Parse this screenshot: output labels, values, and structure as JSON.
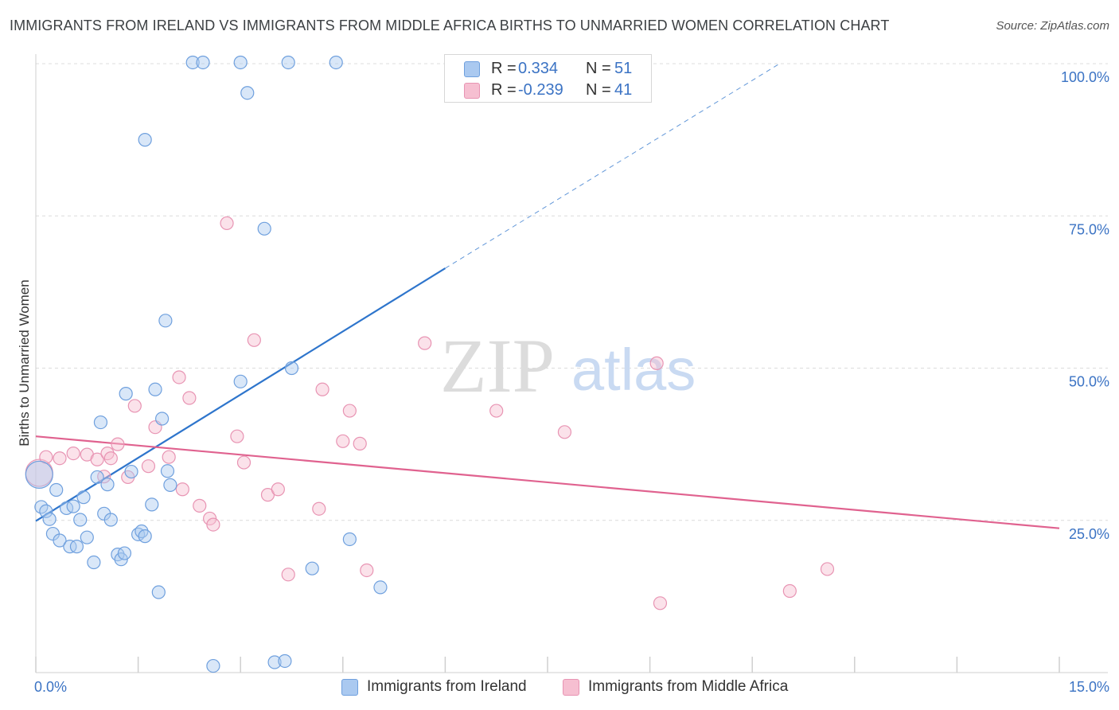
{
  "title": "IMMIGRANTS FROM IRELAND VS IMMIGRANTS FROM MIDDLE AFRICA BIRTHS TO UNMARRIED WOMEN CORRELATION CHART",
  "source": "Source: ZipAtlas.com",
  "watermark": {
    "zip": "ZIP",
    "atlas": "atlas"
  },
  "legend": {
    "rows": [
      {
        "r_label": "R =",
        "r_value": "0.334",
        "n_label": "N =",
        "n_value": "51"
      },
      {
        "r_label": "R =",
        "r_value": "-0.239",
        "n_label": "N =",
        "n_value": "41"
      }
    ]
  },
  "colors": {
    "ireland_fill": "#aac9f0",
    "ireland_stroke": "#6fa0de",
    "ireland_line": "#2e75cc",
    "africa_fill": "#f6bfd1",
    "africa_stroke": "#e894b3",
    "africa_line": "#e0628f",
    "tick_text": "#3b73c4",
    "grid": "#dcdcdc"
  },
  "chart_data": {
    "type": "scatter",
    "title": "IMMIGRANTS FROM IRELAND VS IMMIGRANTS FROM MIDDLE AFRICA BIRTHS TO UNMARRIED WOMEN CORRELATION CHART",
    "xlabel": "",
    "ylabel": "Births to Unmarried Women",
    "xlim": [
      0,
      15
    ],
    "ylim": [
      0,
      100
    ],
    "x_tick_labels": [
      "0.0%",
      "15.0%"
    ],
    "y_ticks": [
      25,
      50,
      75,
      100
    ],
    "y_tick_labels": [
      "25.0%",
      "50.0%",
      "75.0%",
      "100.0%"
    ],
    "legend_position": "bottom",
    "series": [
      {
        "name": "Immigrants from Ireland",
        "R": 0.334,
        "N": 51,
        "trend": {
          "x": [
            0,
            6
          ],
          "y": [
            24.9,
            66.4
          ],
          "dashed_to": [
            10.9,
            100.0
          ]
        },
        "points": [
          {
            "x": 0.05,
            "y": 32.5,
            "big": true
          },
          {
            "x": 0.08,
            "y": 27.2
          },
          {
            "x": 0.15,
            "y": 26.5
          },
          {
            "x": 0.2,
            "y": 25.2
          },
          {
            "x": 0.25,
            "y": 22.8
          },
          {
            "x": 0.3,
            "y": 30.0
          },
          {
            "x": 0.35,
            "y": 21.7
          },
          {
            "x": 0.45,
            "y": 27.0
          },
          {
            "x": 0.5,
            "y": 20.7
          },
          {
            "x": 0.55,
            "y": 27.3
          },
          {
            "x": 0.6,
            "y": 20.7
          },
          {
            "x": 0.65,
            "y": 25.1
          },
          {
            "x": 0.7,
            "y": 28.8
          },
          {
            "x": 0.75,
            "y": 22.2
          },
          {
            "x": 0.85,
            "y": 18.1
          },
          {
            "x": 0.9,
            "y": 32.1
          },
          {
            "x": 0.95,
            "y": 41.1
          },
          {
            "x": 1.0,
            "y": 26.1
          },
          {
            "x": 1.05,
            "y": 30.9
          },
          {
            "x": 1.1,
            "y": 25.1
          },
          {
            "x": 1.2,
            "y": 19.4
          },
          {
            "x": 1.25,
            "y": 18.6
          },
          {
            "x": 1.3,
            "y": 19.6
          },
          {
            "x": 1.32,
            "y": 45.8
          },
          {
            "x": 1.4,
            "y": 33.0
          },
          {
            "x": 1.5,
            "y": 22.7
          },
          {
            "x": 1.55,
            "y": 23.2
          },
          {
            "x": 1.6,
            "y": 22.4
          },
          {
            "x": 1.6,
            "y": 87.5
          },
          {
            "x": 1.7,
            "y": 27.6
          },
          {
            "x": 1.75,
            "y": 46.5
          },
          {
            "x": 1.8,
            "y": 13.2
          },
          {
            "x": 1.85,
            "y": 41.7
          },
          {
            "x": 1.9,
            "y": 57.8
          },
          {
            "x": 1.93,
            "y": 33.1
          },
          {
            "x": 1.97,
            "y": 30.8
          },
          {
            "x": 2.3,
            "y": 100.2
          },
          {
            "x": 2.45,
            "y": 100.2
          },
          {
            "x": 2.6,
            "y": 1.1
          },
          {
            "x": 3.0,
            "y": 100.2
          },
          {
            "x": 3.1,
            "y": 95.2
          },
          {
            "x": 3.0,
            "y": 47.8
          },
          {
            "x": 3.35,
            "y": 72.9
          },
          {
            "x": 3.5,
            "y": 1.7
          },
          {
            "x": 3.65,
            "y": 1.9
          },
          {
            "x": 3.7,
            "y": 100.2
          },
          {
            "x": 3.75,
            "y": 50.0
          },
          {
            "x": 4.05,
            "y": 17.1
          },
          {
            "x": 4.4,
            "y": 100.2
          },
          {
            "x": 4.6,
            "y": 21.9
          },
          {
            "x": 5.05,
            "y": 14.0
          }
        ]
      },
      {
        "name": "Immigrants from Middle Africa",
        "R": -0.239,
        "N": 41,
        "trend": {
          "x": [
            0,
            15
          ],
          "y": [
            38.8,
            23.7
          ]
        },
        "points": [
          {
            "x": 0.05,
            "y": 32.8,
            "big": true
          },
          {
            "x": 0.15,
            "y": 35.4
          },
          {
            "x": 0.35,
            "y": 35.2
          },
          {
            "x": 0.55,
            "y": 36.0
          },
          {
            "x": 0.75,
            "y": 35.8
          },
          {
            "x": 0.9,
            "y": 35.0
          },
          {
            "x": 1.0,
            "y": 32.2
          },
          {
            "x": 1.05,
            "y": 36.0
          },
          {
            "x": 1.1,
            "y": 35.2
          },
          {
            "x": 1.2,
            "y": 37.5
          },
          {
            "x": 1.35,
            "y": 32.1
          },
          {
            "x": 1.45,
            "y": 43.8
          },
          {
            "x": 1.65,
            "y": 33.9
          },
          {
            "x": 1.75,
            "y": 40.3
          },
          {
            "x": 1.95,
            "y": 35.4
          },
          {
            "x": 2.1,
            "y": 48.5
          },
          {
            "x": 2.15,
            "y": 30.1
          },
          {
            "x": 2.25,
            "y": 45.1
          },
          {
            "x": 2.4,
            "y": 27.4
          },
          {
            "x": 2.55,
            "y": 25.3
          },
          {
            "x": 2.6,
            "y": 24.3
          },
          {
            "x": 2.8,
            "y": 73.8
          },
          {
            "x": 2.95,
            "y": 38.8
          },
          {
            "x": 3.05,
            "y": 34.5
          },
          {
            "x": 3.2,
            "y": 54.6
          },
          {
            "x": 3.4,
            "y": 29.2
          },
          {
            "x": 3.55,
            "y": 30.1
          },
          {
            "x": 3.7,
            "y": 16.1
          },
          {
            "x": 4.15,
            "y": 26.9
          },
          {
            "x": 4.2,
            "y": 46.5
          },
          {
            "x": 4.5,
            "y": 38.0
          },
          {
            "x": 4.6,
            "y": 43.0
          },
          {
            "x": 4.75,
            "y": 37.6
          },
          {
            "x": 4.85,
            "y": 16.8
          },
          {
            "x": 5.7,
            "y": 54.1
          },
          {
            "x": 6.75,
            "y": 43.0
          },
          {
            "x": 7.75,
            "y": 39.5
          },
          {
            "x": 9.1,
            "y": 50.8
          },
          {
            "x": 9.15,
            "y": 11.4
          },
          {
            "x": 11.05,
            "y": 13.4
          },
          {
            "x": 11.6,
            "y": 17.0
          }
        ]
      }
    ]
  }
}
